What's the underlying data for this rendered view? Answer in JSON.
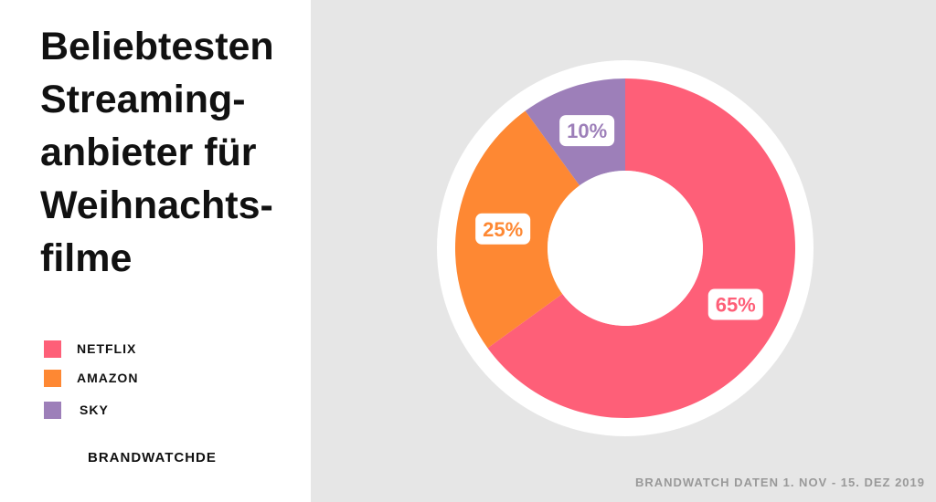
{
  "title_lines": [
    "Beliebtesten",
    "Streaming-",
    "anbieter für",
    "Weihnachts-",
    "filme"
  ],
  "brand": "BRANDWATCHDE",
  "source": "BRANDWATCH DATEN 1. NOV - 15. DEZ 2019",
  "colors": {
    "background_right": "#e6e6e6",
    "ring": "#ffffff"
  },
  "chart_data": {
    "type": "pie",
    "variant": "donut",
    "title": "Beliebtesten Streaming-anbieter für Weihnachtsfilme",
    "legend_position": "left",
    "slices": [
      {
        "name": "NETFLIX",
        "value": 65,
        "label": "65%",
        "color": "#fe5f78"
      },
      {
        "name": "AMAZON",
        "value": 25,
        "label": "25%",
        "color": "#fe8833"
      },
      {
        "name": "SKY",
        "value": 10,
        "label": "10%",
        "color": "#9d7fb9"
      }
    ]
  }
}
